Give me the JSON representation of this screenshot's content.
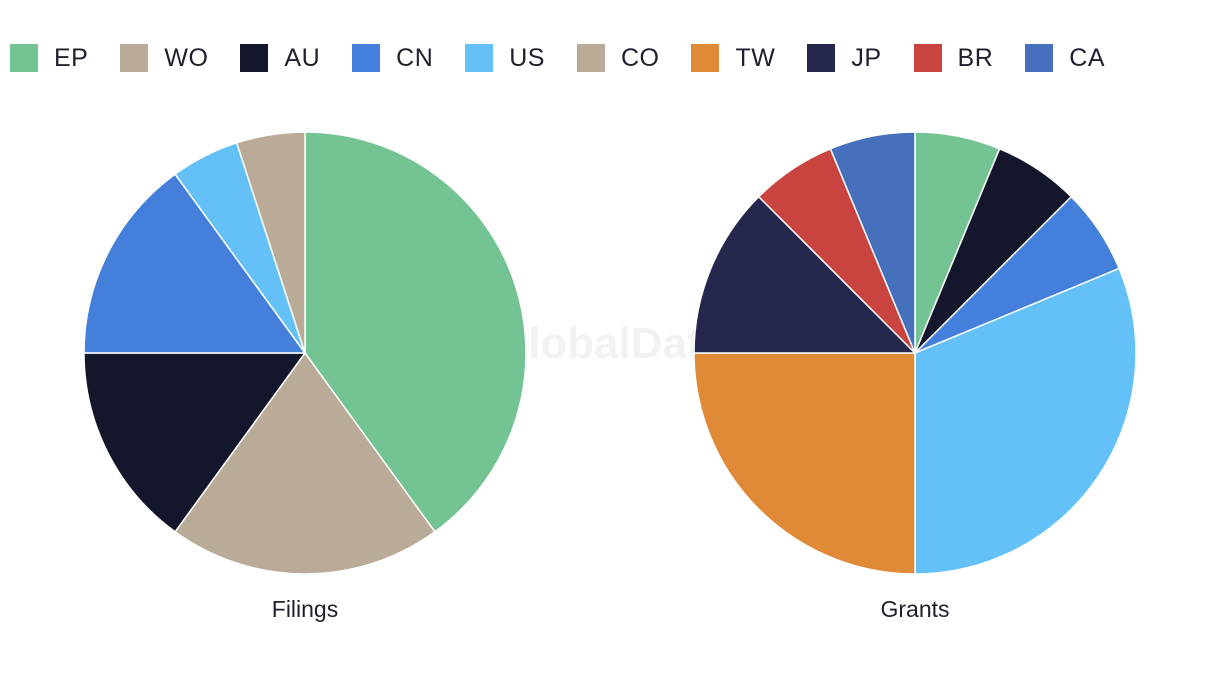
{
  "watermark": "GlobalData",
  "legend": [
    {
      "code": "EP",
      "color": "#73c393"
    },
    {
      "code": "WO",
      "color": "#b9ab98"
    },
    {
      "code": "AU",
      "color": "#14162c"
    },
    {
      "code": "CN",
      "color": "#437fdb"
    },
    {
      "code": "US",
      "color": "#63c1f8"
    },
    {
      "code": "CO",
      "color": "#b9ab98"
    },
    {
      "code": "TW",
      "color": "#e08a38"
    },
    {
      "code": "JP",
      "color": "#25284c"
    },
    {
      "code": "BR",
      "color": "#c9443f"
    },
    {
      "code": "CA",
      "color": "#4670bb"
    }
  ],
  "chart_data": [
    {
      "type": "pie",
      "title": "Filings",
      "slices": [
        {
          "label": "EP",
          "value": 8,
          "color": "#73c393"
        },
        {
          "label": "WO",
          "value": 4,
          "color": "#b9ab98"
        },
        {
          "label": "AU",
          "value": 3,
          "color": "#14162c"
        },
        {
          "label": "CN",
          "value": 3,
          "color": "#437fdb"
        },
        {
          "label": "US",
          "value": 1,
          "color": "#63c1f8"
        },
        {
          "label": "CO",
          "value": 1,
          "color": "#b9ab98"
        }
      ]
    },
    {
      "type": "pie",
      "title": "Grants",
      "slices": [
        {
          "label": "EP",
          "value": 1,
          "color": "#73c393"
        },
        {
          "label": "AU",
          "value": 1,
          "color": "#14162c"
        },
        {
          "label": "CN",
          "value": 1,
          "color": "#437fdb"
        },
        {
          "label": "US",
          "value": 5,
          "color": "#63c1f8"
        },
        {
          "label": "TW",
          "value": 4,
          "color": "#e08a38"
        },
        {
          "label": "JP",
          "value": 2,
          "color": "#25284c"
        },
        {
          "label": "BR",
          "value": 1,
          "color": "#c9443f"
        },
        {
          "label": "CA",
          "value": 1,
          "color": "#4670bb"
        }
      ]
    }
  ]
}
